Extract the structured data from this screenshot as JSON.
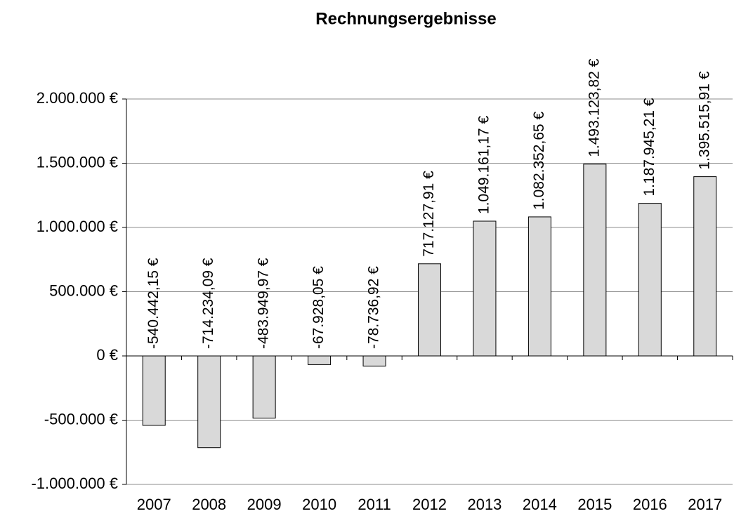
{
  "chart_data": {
    "type": "bar",
    "title": "Rechnungsergebnisse",
    "categories": [
      "2007",
      "2008",
      "2009",
      "2010",
      "2011",
      "2012",
      "2013",
      "2014",
      "2015",
      "2016",
      "2017"
    ],
    "values": [
      -540442.15,
      -714234.09,
      -483949.97,
      -67928.05,
      -78736.92,
      717127.91,
      1049161.17,
      1082352.65,
      1493123.82,
      1187945.21,
      1395515.91
    ],
    "value_labels": [
      "-540.442,15 €",
      "-714.234,09 €",
      "-483.949,97 €",
      "-67.928,05 €",
      "-78.736,92 €",
      "717.127,91 €",
      "1.049.161,17 €",
      "1.082.352,65 €",
      "1.493.123,82 €",
      "1.187.945,21 €",
      "1.395.515,91 €"
    ],
    "color": "#d9d9d9",
    "ylim": [
      -1000000,
      2000000
    ],
    "yticks": [
      {
        "value": -1000000,
        "label": "-1.000.000 €"
      },
      {
        "value": -500000,
        "label": "-500.000 €"
      },
      {
        "value": 0,
        "label": "0 €"
      },
      {
        "value": 500000,
        "label": "500.000 €"
      },
      {
        "value": 1000000,
        "label": "1.000.000 €"
      },
      {
        "value": 1500000,
        "label": "1.500.000 €"
      },
      {
        "value": 2000000,
        "label": "2.000.000 €"
      }
    ],
    "grid": true
  }
}
